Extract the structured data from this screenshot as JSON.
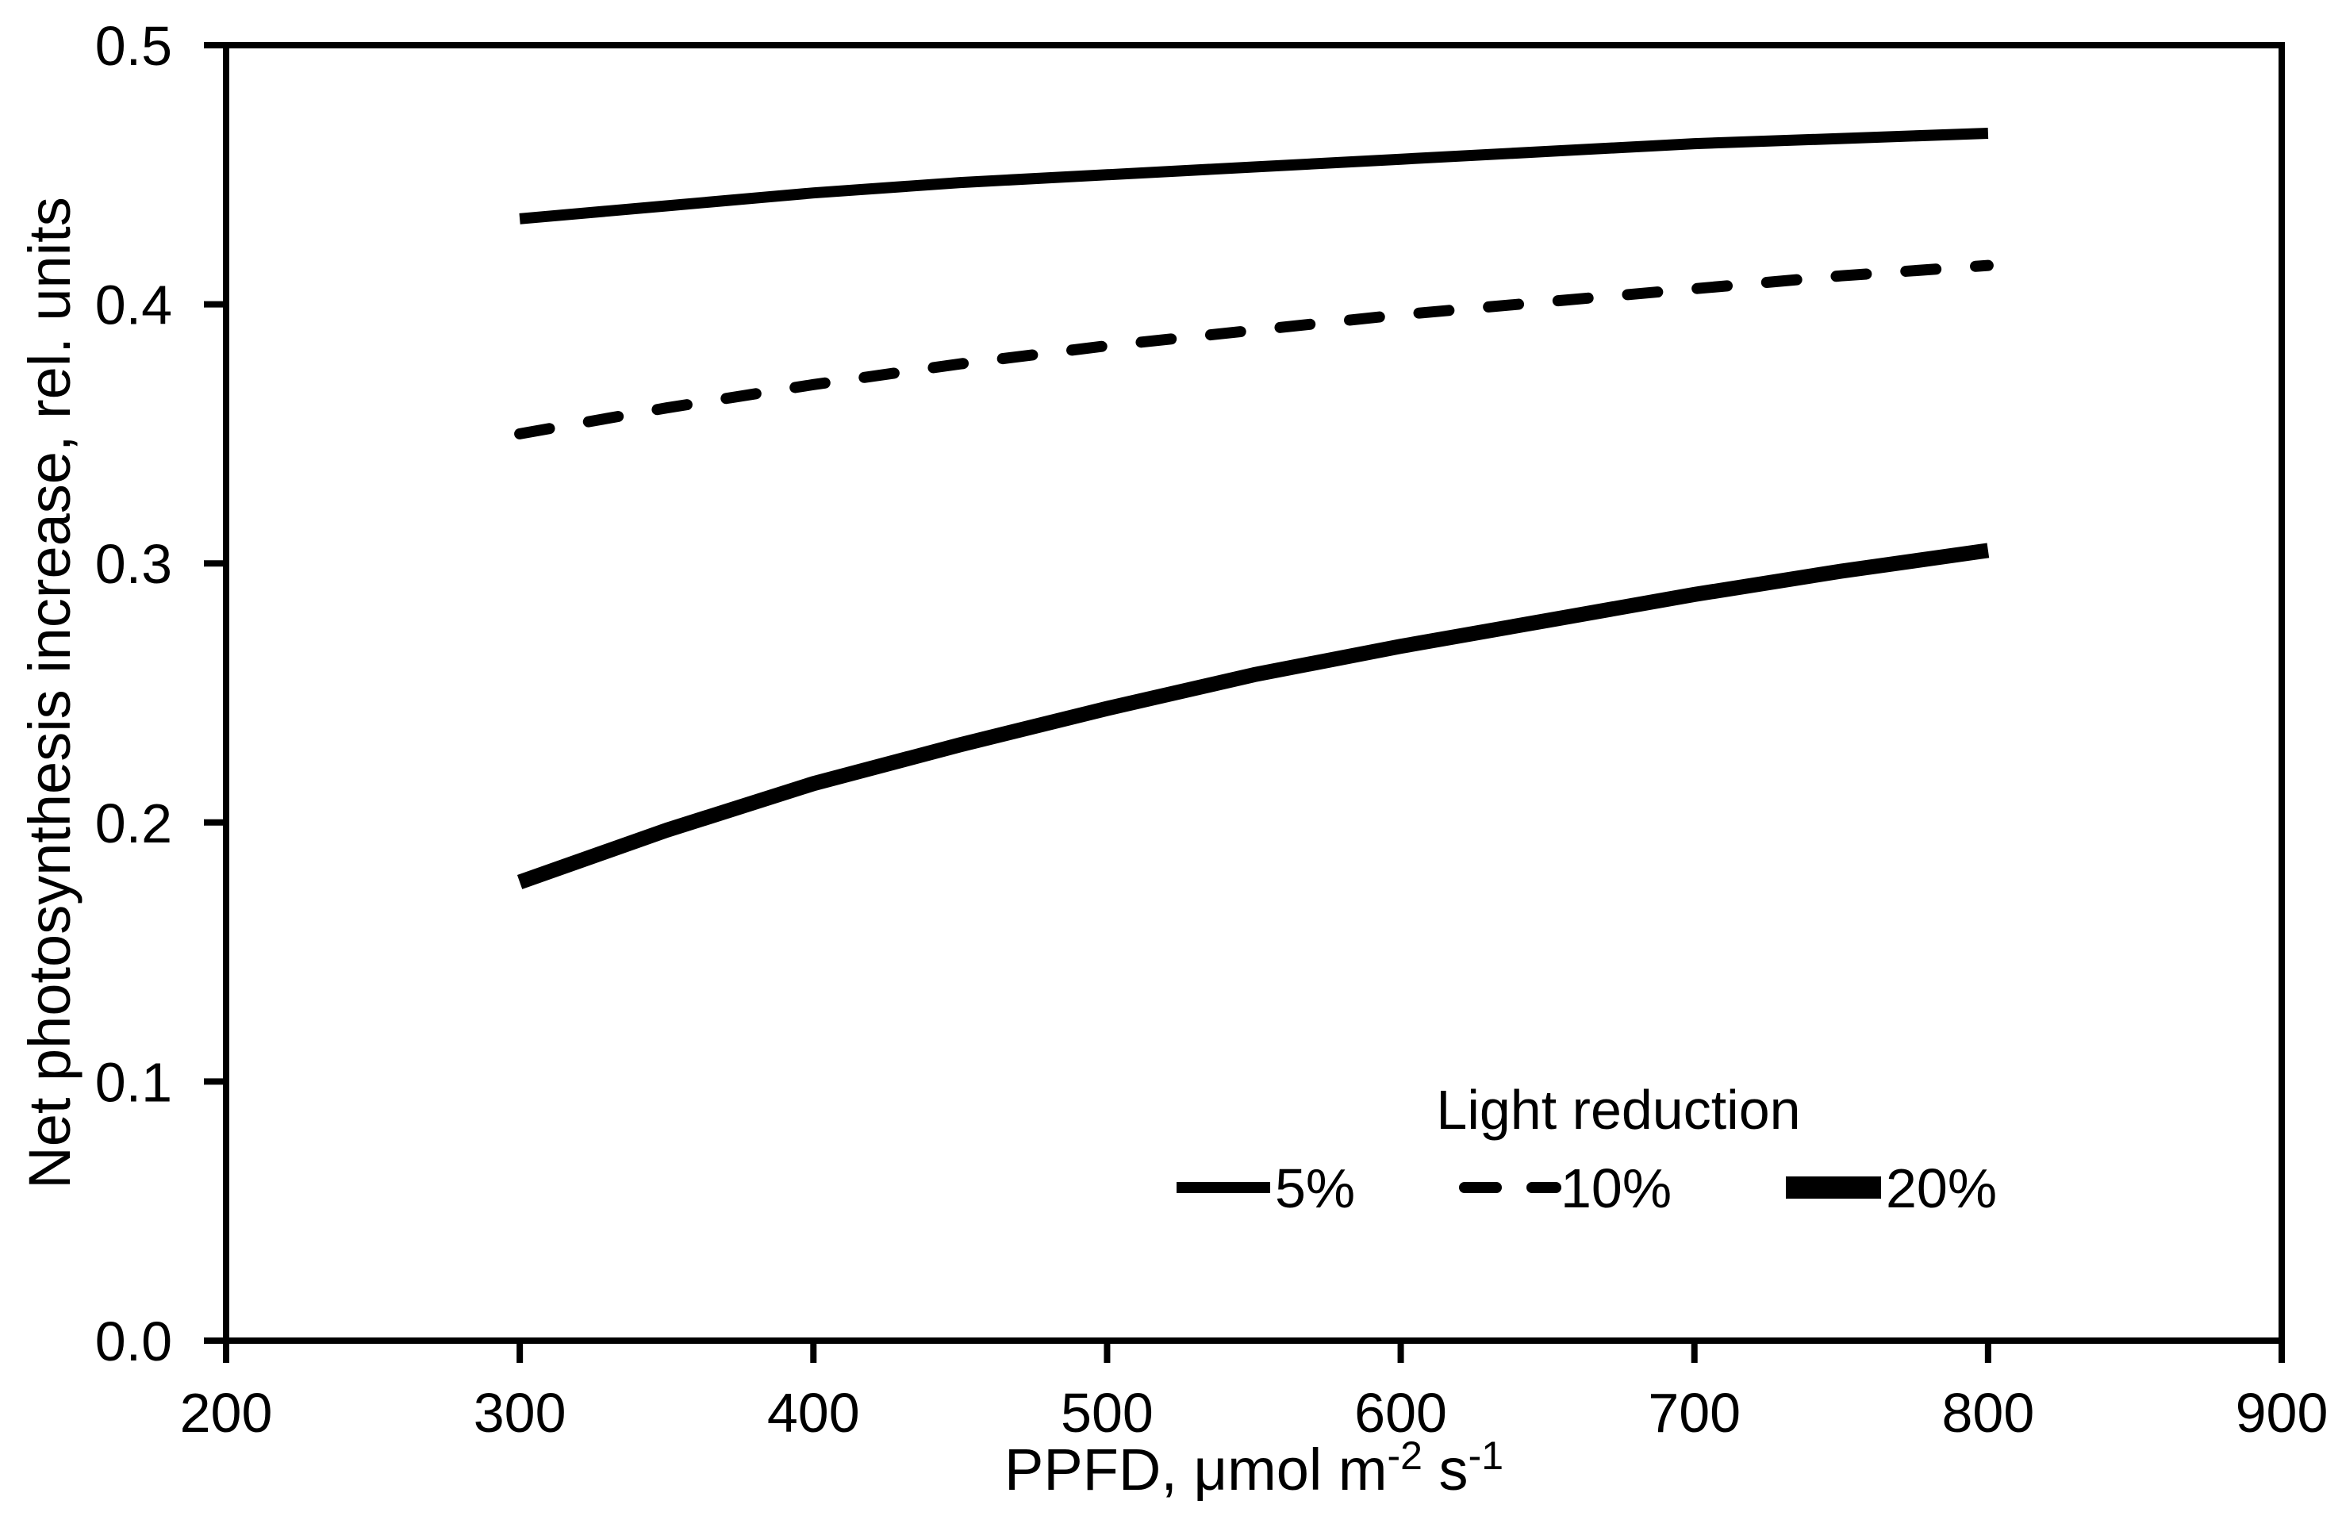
{
  "chart_data": {
    "type": "line",
    "title": "",
    "xlabel": "PPFD, μmol m⁻² s⁻¹",
    "xlabel_parts": [
      {
        "t": "PPFD, μmol m",
        "sup": false
      },
      {
        "t": "-2",
        "sup": true
      },
      {
        "t": " s",
        "sup": false
      },
      {
        "t": "-1",
        "sup": true
      }
    ],
    "ylabel": "Net photosynthesis increase, rel. units",
    "xlim": [
      200,
      900
    ],
    "ylim": [
      0.0,
      0.5
    ],
    "x_ticks": [
      200,
      300,
      400,
      500,
      600,
      700,
      800,
      900
    ],
    "x_tick_labels": [
      "200",
      "300",
      "400",
      "500",
      "600",
      "700",
      "800",
      "900"
    ],
    "y_ticks": [
      0.0,
      0.1,
      0.2,
      0.3,
      0.4,
      0.5
    ],
    "y_tick_labels": [
      "0.0",
      "0.1",
      "0.2",
      "0.3",
      "0.4",
      "0.5"
    ],
    "grid": false,
    "frame": "full-box",
    "legend": {
      "title": "Light reduction",
      "position": "inside lower right",
      "items": [
        {
          "label": "5%",
          "style": "solid"
        },
        {
          "label": "10%",
          "style": "dashed"
        },
        {
          "label": "20%",
          "style": "solid-thick"
        }
      ]
    },
    "x": [
      300,
      350,
      400,
      450,
      500,
      550,
      600,
      650,
      700,
      750,
      800
    ],
    "series": [
      {
        "name": "5%",
        "style": "solid",
        "values": [
          0.433,
          0.438,
          0.443,
          0.447,
          0.45,
          0.453,
          0.456,
          0.459,
          0.462,
          0.464,
          0.466
        ]
      },
      {
        "name": "10%",
        "style": "dashed",
        "values": [
          0.35,
          0.36,
          0.369,
          0.377,
          0.384,
          0.39,
          0.396,
          0.401,
          0.406,
          0.411,
          0.415
        ]
      },
      {
        "name": "20%",
        "style": "solid-thick",
        "values": [
          0.177,
          0.197,
          0.215,
          0.23,
          0.244,
          0.257,
          0.268,
          0.278,
          0.288,
          0.297,
          0.305
        ]
      }
    ],
    "colors": {
      "line": "#000000",
      "text": "#000000",
      "background": "#ffffff"
    }
  }
}
